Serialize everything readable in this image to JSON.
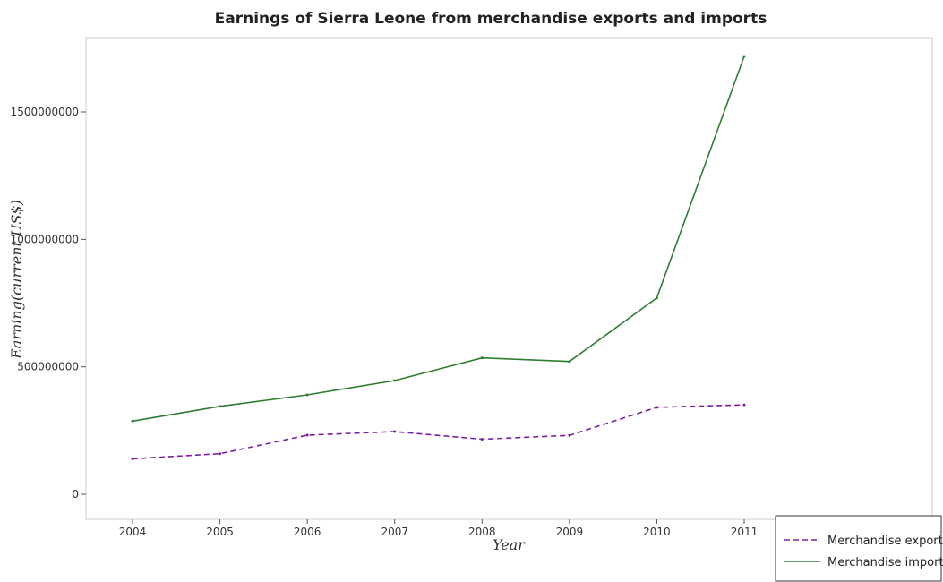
{
  "chart_data": {
    "type": "line",
    "title": "Earnings of Sierra Leone from merchandise exports and imports",
    "xlabel": "Year",
    "ylabel": "Earning(current US$)",
    "categories": [
      "2004",
      "2005",
      "2006",
      "2007",
      "2008",
      "2009",
      "2010",
      "2011"
    ],
    "ylim": [
      0,
      1800000000
    ],
    "yticks": [
      0,
      500000000,
      1000000000,
      1500000000
    ],
    "ytick_labels": [
      "0",
      "500000000",
      "1000000000",
      "1500000000"
    ],
    "grid": false,
    "legend_position": "bottom-right",
    "series": [
      {
        "name": "Merchandise exports",
        "color": "#7b1fa2",
        "dash": "dashed",
        "values": [
          139000000,
          159000000,
          232000000,
          246000000,
          216000000,
          231000000,
          341000000,
          351000000
        ]
      },
      {
        "name": "Merchandise imports",
        "color": "#2e7d32",
        "dash": "solid",
        "values": [
          287000000,
          345000000,
          390000000,
          446000000,
          535000000,
          521000000,
          770000000,
          1718000000
        ]
      }
    ]
  }
}
